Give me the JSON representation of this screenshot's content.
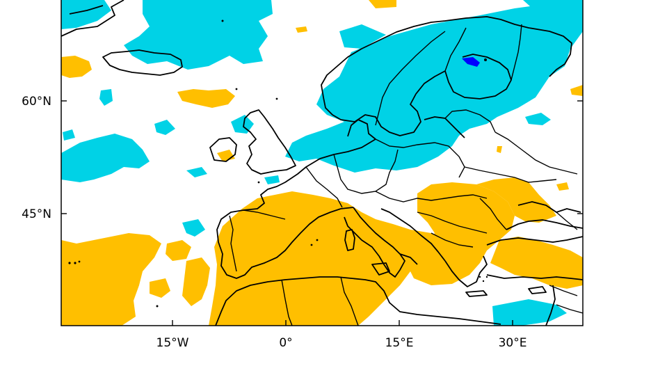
{
  "map": {
    "colors": {
      "positive_anomaly": "#00d2e6",
      "negative_anomaly": "#ffbf00",
      "strong_positive": "#0000ff",
      "coastline": "#000000",
      "frame": "#000000",
      "background": "#ffffff"
    },
    "lat_ticks": [
      {
        "value": 60,
        "label": "60°N"
      },
      {
        "value": 45,
        "label": "45°N"
      }
    ],
    "lon_ticks": [
      {
        "value": -15,
        "label": "15°W"
      },
      {
        "value": 0,
        "label": "0°"
      },
      {
        "value": 15,
        "label": "15°E"
      },
      {
        "value": 30,
        "label": "30°E"
      }
    ]
  }
}
